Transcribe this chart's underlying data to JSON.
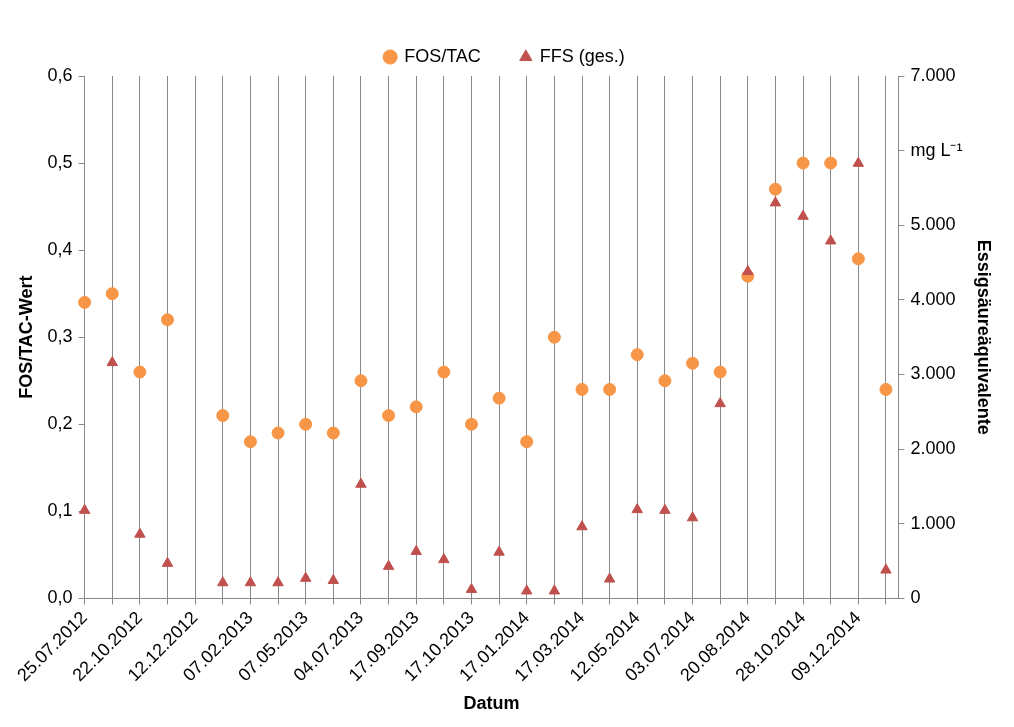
{
  "chart_data": {
    "type": "scatter",
    "xlabel": "Datum",
    "ylabel": "FOS/TAC-Wert",
    "y2label": "Essigsäureäquivalente",
    "categories": [
      "25.07.2012",
      null,
      "22.10.2012",
      null,
      "12.12.2012",
      null,
      "07.02.2013",
      null,
      "07.05.2013",
      null,
      "04.07.2013",
      null,
      "17.09.2013",
      null,
      "17.10.2013",
      null,
      "17.01.2014",
      null,
      "17.03.2014",
      null,
      "12.05.2014",
      null,
      "03.07.2014",
      null,
      "20.08.2014",
      null,
      "28.10.2014",
      null,
      "09.12.2014",
      null
    ],
    "series": [
      {
        "name": "FOS/TAC",
        "color": "#f79646",
        "marker": "circle",
        "values": [
          0.34,
          0.35,
          0.26,
          0.32,
          null,
          0.21,
          0.18,
          0.19,
          0.2,
          0.19,
          0.25,
          0.21,
          0.22,
          0.26,
          0.2,
          0.23,
          0.18,
          0.3,
          0.24,
          0.24,
          0.28,
          0.25,
          0.27,
          0.26,
          0.37,
          0.47,
          0.5,
          0.5,
          0.39,
          0.24
        ]
      },
      {
        "name": "FFS (ges.)",
        "color": "#c0504d",
        "marker": "triangle",
        "axis": "y2",
        "values": [
          1180,
          3160,
          860,
          470,
          null,
          210,
          210,
          210,
          270,
          240,
          1530,
          430,
          630,
          520,
          120,
          620,
          100,
          100,
          960,
          260,
          1190,
          1180,
          1080,
          2610,
          4380,
          5300,
          5120,
          4790,
          5830,
          380
        ]
      }
    ],
    "ylim": [
      0,
      0.6
    ],
    "yticks": [
      {
        "value": 0,
        "label": "0,0"
      },
      {
        "value": 0.1,
        "label": "0,1"
      },
      {
        "value": 0.2,
        "label": "0,2"
      },
      {
        "value": 0.3,
        "label": "0,3"
      },
      {
        "value": 0.4,
        "label": "0,4"
      },
      {
        "value": 0.5,
        "label": "0,5"
      },
      {
        "value": 0.6,
        "label": "0,6"
      }
    ],
    "y2lim": [
      0,
      7000
    ],
    "y2ticks": [
      0,
      {
        "value": 1000,
        "label": "1.000"
      },
      {
        "value": 2000,
        "label": "2.000"
      },
      {
        "value": 3000,
        "label": "3.000"
      },
      {
        "value": 4000,
        "label": "4.000"
      },
      {
        "value": 5000,
        "label": "5.000"
      },
      {
        "value": 6000,
        "label": "mg L⁻¹"
      },
      {
        "value": 7000,
        "label": "7.000"
      }
    ],
    "grid": "x",
    "legend": "top"
  }
}
